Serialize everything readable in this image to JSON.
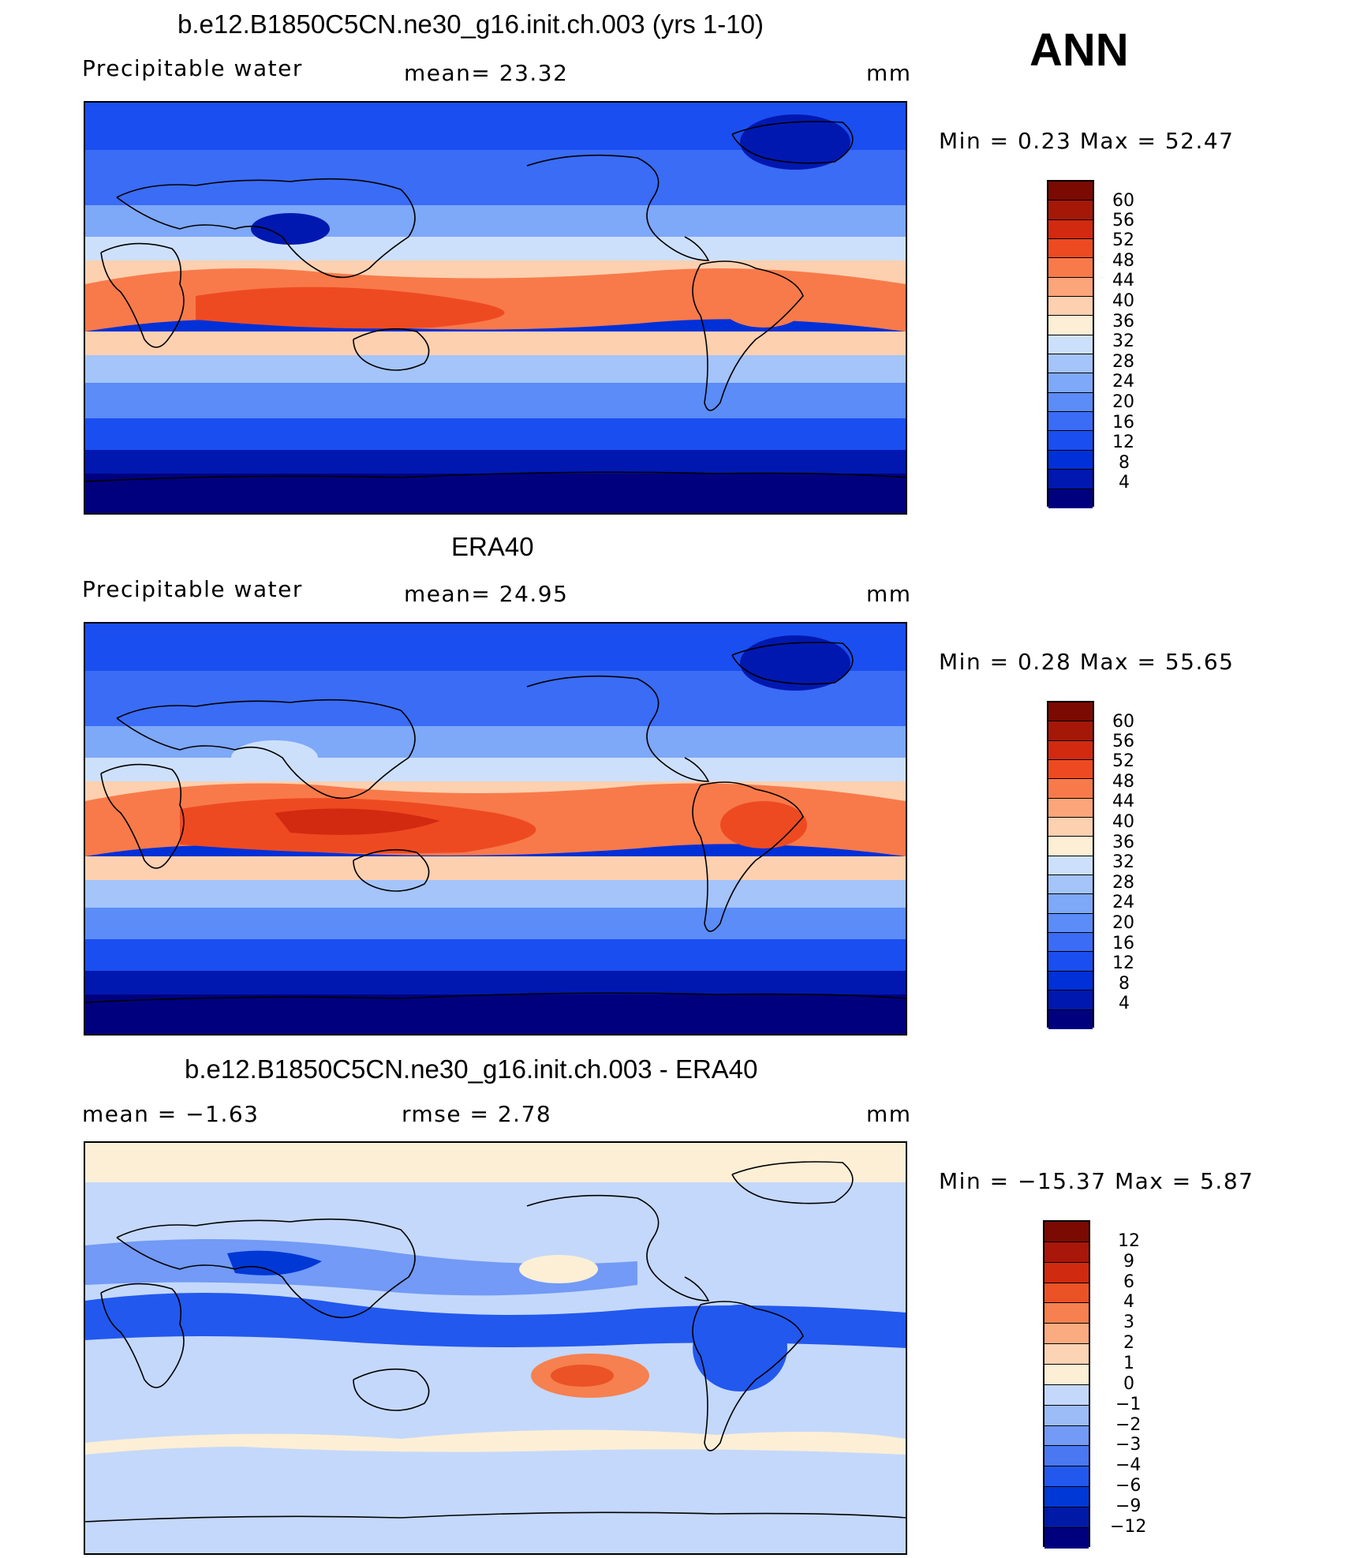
{
  "season": "ANN",
  "colors": {
    "abs_scale": [
      "#00007f",
      "#0018b0",
      "#0030d8",
      "#1a4ef0",
      "#3a6cf5",
      "#5b8cf7",
      "#7ea8f8",
      "#a4c4fa",
      "#cde0fb",
      "#fcefd6",
      "#fdd0b0",
      "#fca47a",
      "#f87a4a",
      "#ee4a22",
      "#d22a10",
      "#a51808",
      "#7a0a02"
    ],
    "diff_scale": [
      "#00007f",
      "#001aa8",
      "#0038d6",
      "#2258ee",
      "#4a78f3",
      "#729af6",
      "#9cbcf8",
      "#c4d8fb",
      "#fcefd6",
      "#fcd3b4",
      "#fbab80",
      "#f6804f",
      "#eb5226",
      "#d02a10",
      "#a8170a",
      "#7a0a02"
    ],
    "coast": "#000000"
  },
  "panels": [
    {
      "title": "b.e12.B1850C5CN.ne30_g16.init.ch.003 (yrs 1-10)",
      "left_label": "Precipitable  water",
      "mid_label": "mean=   23.32",
      "units": "mm",
      "minmax": "Min  =     0.23  Max  =     52.47",
      "levels": [
        "60",
        "56",
        "52",
        "48",
        "44",
        "40",
        "36",
        "32",
        "28",
        "24",
        "20",
        "16",
        "12",
        "8",
        "4"
      ]
    },
    {
      "title": "ERA40",
      "left_label": "Precipitable  water",
      "mid_label": "mean=   24.95",
      "units": "mm",
      "minmax": "Min  =     0.28  Max  =     55.65",
      "levels": [
        "60",
        "56",
        "52",
        "48",
        "44",
        "40",
        "36",
        "32",
        "28",
        "24",
        "20",
        "16",
        "12",
        "8",
        "4"
      ]
    },
    {
      "title": "b.e12.B1850C5CN.ne30_g16.init.ch.003 - ERA40",
      "left_label": "mean  =    −1.63",
      "mid_label": "rmse  =     2.78",
      "units": "mm",
      "minmax": "Min  = −15.37  Max  =      5.87",
      "levels": [
        "12",
        "9",
        "6",
        "4",
        "3",
        "2",
        "1",
        "0",
        "−1",
        "−2",
        "−3",
        "−4",
        "−6",
        "−9",
        "−12"
      ]
    }
  ]
}
